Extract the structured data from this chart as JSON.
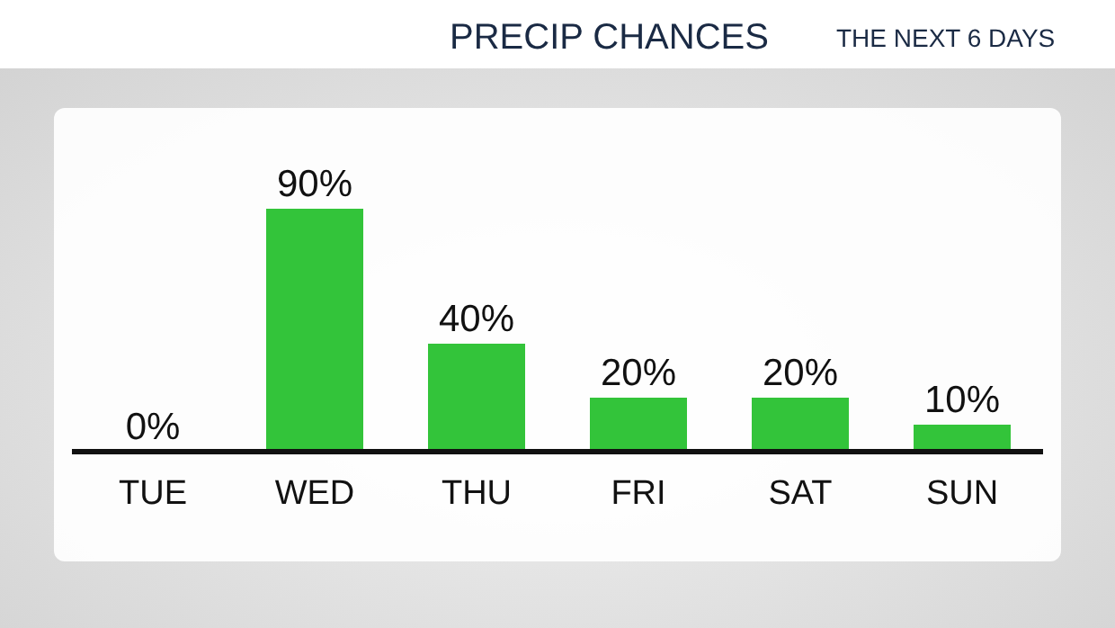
{
  "chart_data": {
    "type": "bar",
    "title": "PRECIP CHANCES",
    "subtitle": "THE NEXT 6 DAYS",
    "categories": [
      "TUE",
      "WED",
      "THU",
      "FRI",
      "SAT",
      "SUN"
    ],
    "values": [
      0,
      90,
      40,
      20,
      20,
      10
    ],
    "value_labels": [
      "0%",
      "90%",
      "40%",
      "20%",
      "20%",
      "10%"
    ],
    "color": "#33c43a"
  }
}
